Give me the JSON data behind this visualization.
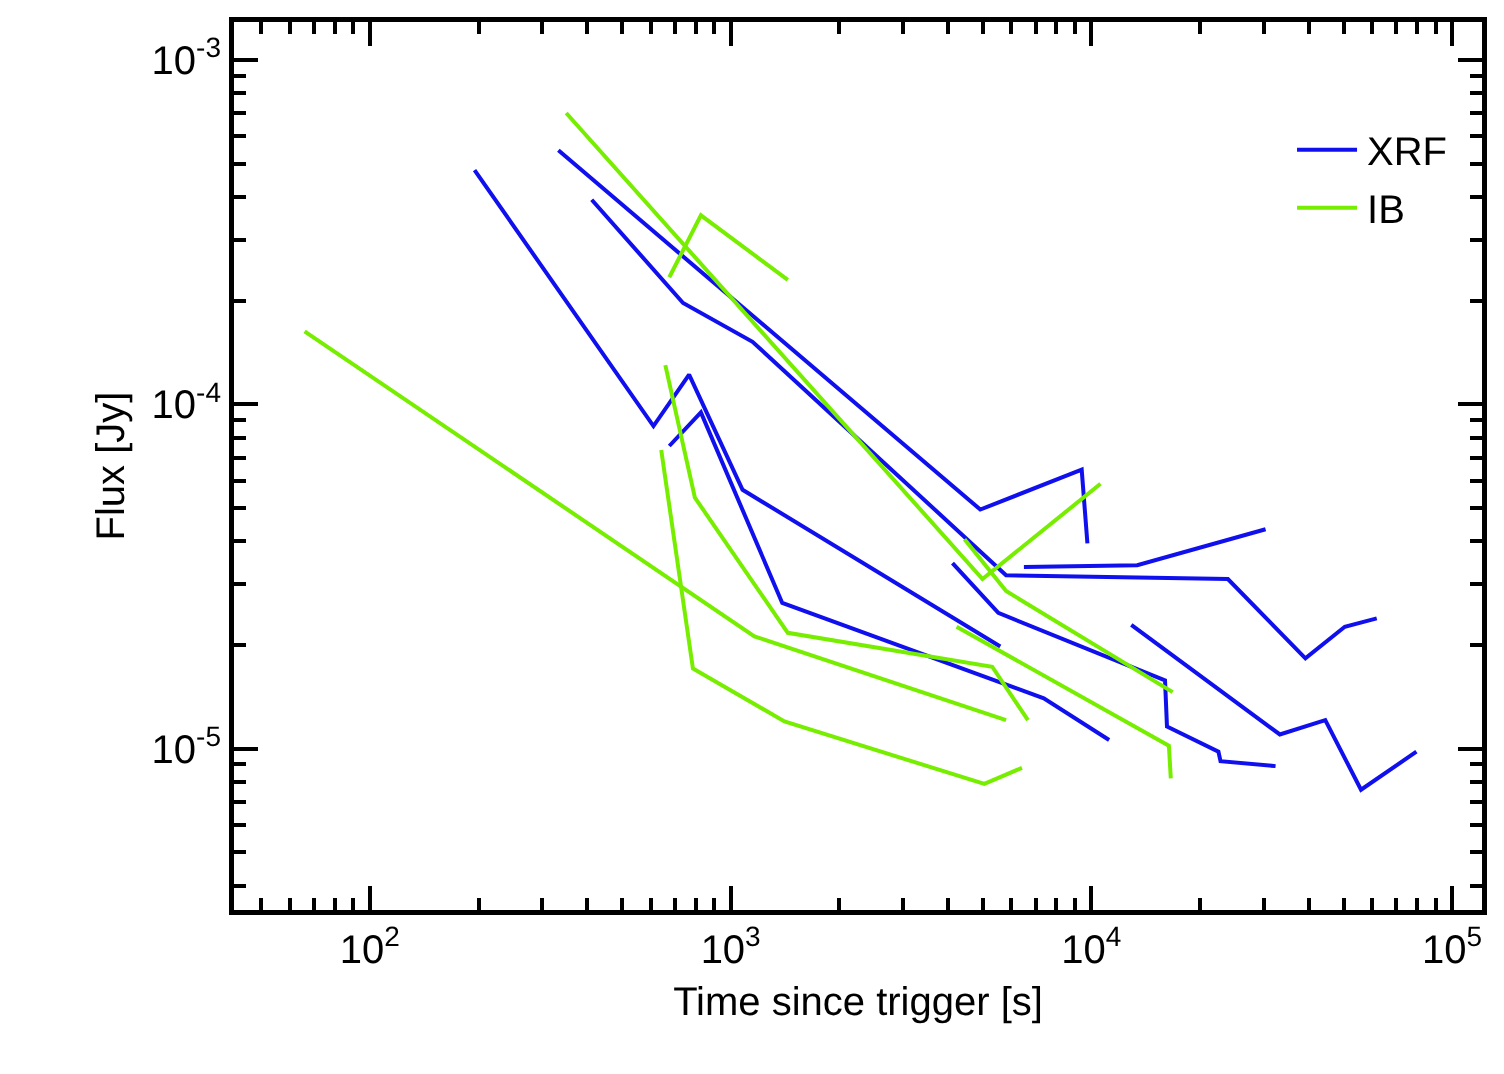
{
  "chart_data": {
    "type": "line",
    "xlabel": "Time since trigger [s]",
    "ylabel": "Flux [Jy]",
    "log": "xy",
    "grid": false,
    "legend": "top right",
    "marker": "none",
    "line_style": "solid",
    "xlim": [
      42,
      121000
    ],
    "ylim": [
      3.4e-06,
      0.00129
    ],
    "xticks": [
      {
        "value": 100,
        "label": "10$^{2}$"
      },
      {
        "value": 1000,
        "label": "10$^{3}$"
      },
      {
        "value": 10000,
        "label": "10$^{4}$"
      },
      {
        "value": 100000,
        "label": "10$^{5}$"
      }
    ],
    "yticks": [
      {
        "value": 1e-05,
        "label": "10$^{-5}$"
      },
      {
        "value": 0.0001,
        "label": "10$^{-4}$"
      },
      {
        "value": 0.001,
        "label": "10$^{-3}$"
      }
    ],
    "series": [
      {
        "name": "XRF",
        "color": "#1010ee",
        "x": [
          195,
          611,
          767,
          1079,
          5590
        ],
        "values": [
          0.000479,
          8.65e-05,
          0.000122,
          5.65e-05,
          1.98e-05
        ]
      },
      {
        "color": "#1010ee",
        "x": [
          676,
          827,
          1390,
          7380,
          11200
        ],
        "values": [
          7.57e-05,
          9.48e-05,
          2.65e-05,
          1.4e-05,
          1.06e-05
        ]
      },
      {
        "color": "#1010ee",
        "x": [
          333,
          4920,
          9400,
          9750
        ],
        "values": [
          0.000547,
          4.95e-05,
          6.46e-05,
          3.95e-05
        ]
      },
      {
        "color": "#1010ee",
        "x": [
          412,
          738,
          1150,
          5800,
          23900,
          39200,
          50400,
          61800
        ],
        "values": [
          0.000393,
          0.000197,
          0.000152,
          3.19e-05,
          3.11e-05,
          1.83e-05,
          2.26e-05,
          2.39e-05
        ]
      },
      {
        "color": "#1010ee",
        "x": [
          6500,
          13400,
          30400
        ],
        "values": [
          3.37e-05,
          3.41e-05,
          4.34e-05
        ]
      },
      {
        "color": "#1010ee",
        "x": [
          4120,
          5520,
          16000,
          16200,
          22500,
          22800,
          32400
        ],
        "values": [
          3.46e-05,
          2.48e-05,
          1.58e-05,
          1.16e-05,
          9.8e-06,
          9.2e-06,
          8.9e-06
        ]
      },
      {
        "color": "#1010ee",
        "x": [
          12900,
          33300,
          44500,
          55900,
          79600
        ],
        "values": [
          2.29e-05,
          1.1e-05,
          1.21e-05,
          7.6e-06,
          9.8e-06
        ]
      },
      {
        "name": "IB",
        "color": "#77ee00",
        "x": [
          65.9,
          1164,
          5800
        ],
        "values": [
          0.000163,
          2.12e-05,
          1.21e-05
        ]
      },
      {
        "color": "#77ee00",
        "x": [
          350,
          4990,
          10600
        ],
        "values": [
          0.000702,
          3.11e-05,
          5.88e-05
        ]
      },
      {
        "color": "#77ee00",
        "x": [
          676,
          827,
          1440
        ],
        "values": [
          0.000234,
          0.000354,
          0.00023
        ]
      },
      {
        "color": "#77ee00",
        "x": [
          659,
          796,
          1440,
          5310,
          6670
        ],
        "values": [
          0.00013,
          5.36e-05,
          2.17e-05,
          1.73e-05,
          1.21e-05
        ]
      },
      {
        "color": "#77ee00",
        "x": [
          642,
          786,
          1410,
          5050,
          6420
        ],
        "values": [
          7.37e-05,
          1.71e-05,
          1.2e-05,
          7.9e-06,
          8.8e-06
        ]
      },
      {
        "color": "#77ee00",
        "x": [
          4450,
          5800,
          16800
        ],
        "values": [
          4.06e-05,
          2.87e-05,
          1.46e-05
        ]
      },
      {
        "color": "#77ee00",
        "x": [
          4230,
          16400,
          16600
        ],
        "values": [
          2.26e-05,
          1.02e-05,
          8.2e-06
        ]
      }
    ]
  }
}
